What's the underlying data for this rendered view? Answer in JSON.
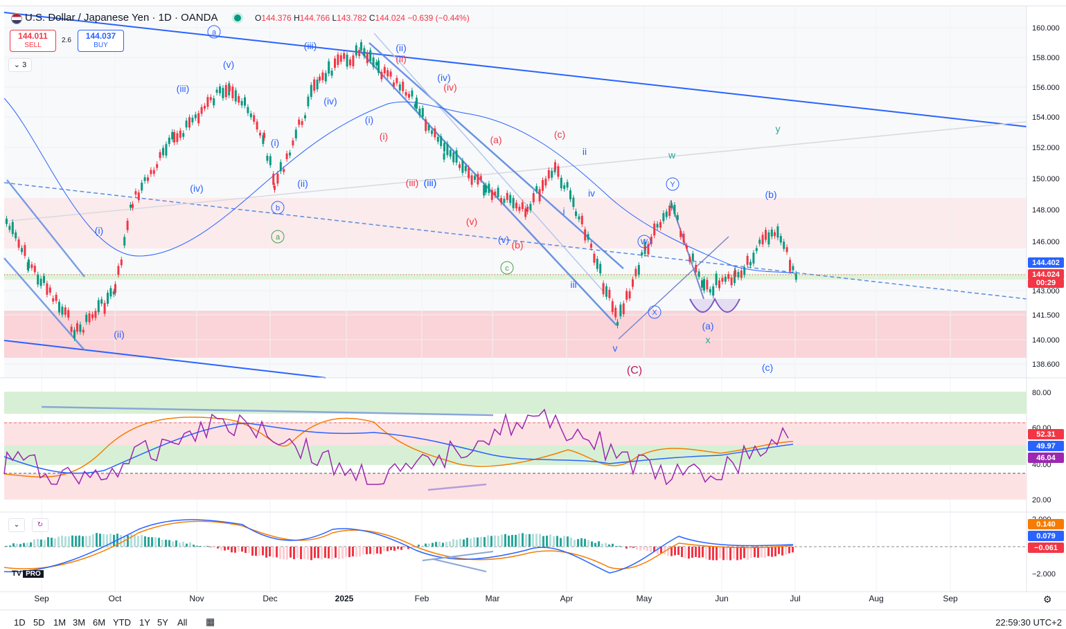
{
  "header": {
    "symbol_title": "U.S. Dollar / Japanese Yen · 1D · OANDA",
    "ohlc": {
      "o_label": "O",
      "o": "144.376",
      "h_label": "H",
      "h": "144.766",
      "l_label": "L",
      "l": "143.782",
      "c_label": "C",
      "c": "144.024",
      "change": "−0.639 (−0.44%)"
    },
    "sell": {
      "price": "144.011",
      "label": "SELL"
    },
    "buy": {
      "price": "144.037",
      "label": "BUY"
    },
    "spread": "2.6",
    "indicator_count": "3"
  },
  "price_axis": {
    "ticks": [
      "160.000",
      "158.000",
      "156.000",
      "154.000",
      "152.000",
      "150.000",
      "148.000",
      "146.000",
      "143.000",
      "141.500",
      "140.000",
      "138.600"
    ],
    "tag_high": "144.402",
    "tag_last": "144.024",
    "tag_countdown": "00:29"
  },
  "rsi_axis": {
    "ticks": [
      "80.00",
      "60.00",
      "40.00",
      "20.00"
    ],
    "tag_a": "52.31",
    "tag_b": "49.97",
    "tag_c": "46.04"
  },
  "macd_axis": {
    "ticks": [
      "2.000",
      "−2.000"
    ],
    "tag_a": "0.140",
    "tag_b": "0.079",
    "tag_c": "−0.061"
  },
  "time_axis": {
    "labels": [
      "Sep",
      "Oct",
      "Nov",
      "Dec",
      "2025",
      "Feb",
      "Mar",
      "Apr",
      "May",
      "Jun",
      "Jul",
      "Aug",
      "Sep"
    ]
  },
  "wave_labels": {
    "blue": [
      "(iii)",
      "(v)",
      "(iv)",
      "(i)",
      "(ii)",
      "(iii)",
      "(i)",
      "(ii)",
      "(iv)",
      "(iii)",
      "(ii)",
      "(i)",
      "(iv)",
      "(iii)",
      "(v)",
      "ii",
      "iv",
      "i",
      "iii",
      "v",
      "(a)",
      "(b)",
      "(c)"
    ],
    "red": [
      "(ii)",
      "(iv)",
      "(i)",
      "(a)",
      "(c)",
      "(iii)",
      "(v)",
      "(b)",
      "(C)"
    ],
    "green": [
      "w",
      "x",
      "y"
    ],
    "circled": [
      "a",
      "b",
      "a",
      "c",
      "W",
      "X",
      "Y"
    ]
  },
  "range_buttons": [
    "1D",
    "5D",
    "1M",
    "3M",
    "6M",
    "YTD",
    "1Y",
    "5Y",
    "All"
  ],
  "clock": "22:59:30 UTC+2",
  "logo": {
    "text": "TV",
    "pro": "PRO"
  },
  "colors": {
    "up": "#089981",
    "down": "#f23645",
    "blue_line": "#2962ff",
    "purple": "#9c27b0",
    "orange": "#f57c00"
  }
}
